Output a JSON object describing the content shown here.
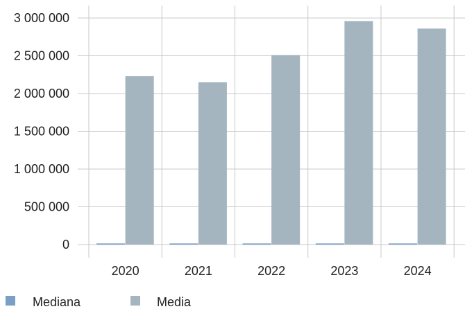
{
  "chart_data": {
    "type": "bar",
    "categories": [
      "2020",
      "2021",
      "2022",
      "2023",
      "2024"
    ],
    "series": [
      {
        "name": "Mediana",
        "values": [
          15000,
          15000,
          15000,
          15000,
          15000
        ]
      },
      {
        "name": "Media",
        "values": [
          2230000,
          2150000,
          2510000,
          2960000,
          2860000
        ]
      }
    ],
    "y_ticks": [
      "3 000 000",
      "2 500 000",
      "2 000 000",
      "1 500 000",
      "1 000 000",
      "500 000",
      "0"
    ],
    "y_tick_values": [
      3000000,
      2500000,
      2000000,
      1500000,
      1000000,
      500000,
      0
    ],
    "ylim": [
      0,
      3000000
    ],
    "grid": true,
    "legend_position": "bottom-left",
    "colors": {
      "Mediana": "#7a9ec6",
      "Media": "#a5b5bf",
      "grid": "#c8c8c8",
      "text": "#222222"
    }
  }
}
